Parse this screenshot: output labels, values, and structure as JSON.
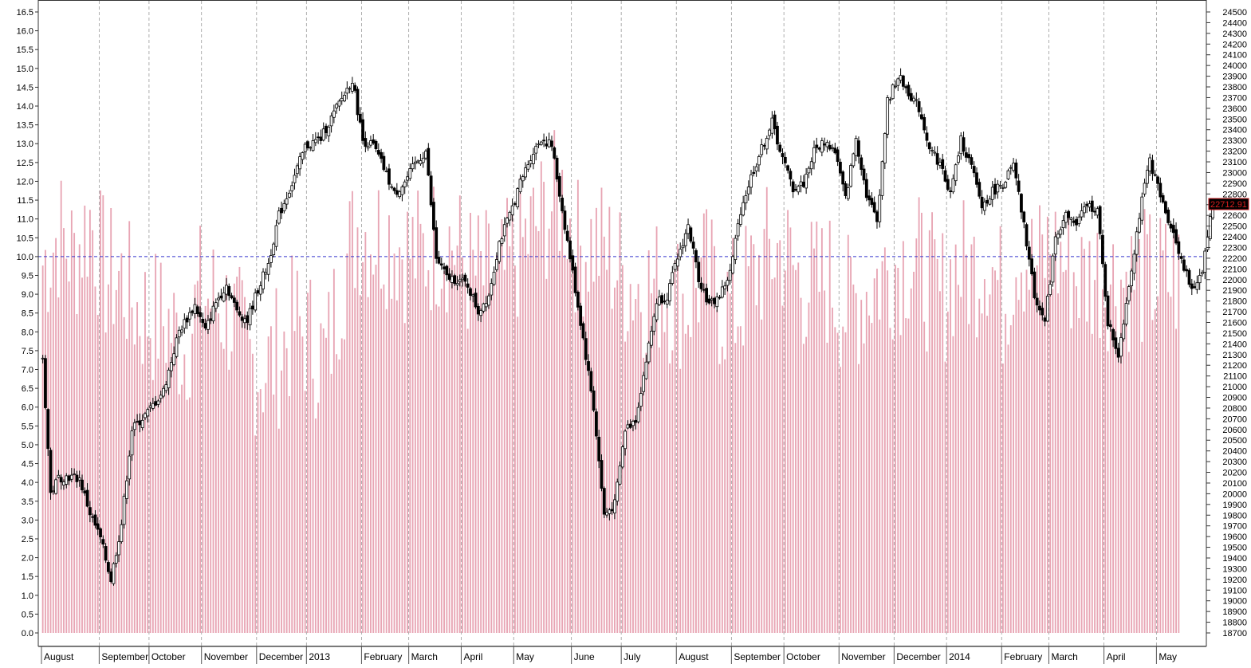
{
  "chart_data": {
    "type": "bar",
    "subtype": "volume bars with candlestick overlay",
    "left_axis": {
      "ylim": [
        0,
        16.5
      ],
      "ticks": [
        "0.0",
        "0.5",
        "1.0",
        "1.5",
        "2.0",
        "2.5",
        "3.0",
        "3.5",
        "4.0",
        "4.5",
        "5.0",
        "5.5",
        "6.0",
        "6.5",
        "7.0",
        "7.5",
        "8.0",
        "8.5",
        "9.0",
        "9.5",
        "10.0",
        "10.5",
        "11.0",
        "11.5",
        "12.0",
        "12.5",
        "13.0",
        "13.5",
        "14.0",
        "14.5",
        "15.0",
        "15.5",
        "16.0",
        "16.5"
      ]
    },
    "right_axis": {
      "ylim": [
        18700,
        24500
      ],
      "ticks": [
        "18700",
        "18800",
        "18900",
        "19000",
        "19100",
        "19200",
        "19300",
        "19400",
        "19500",
        "19600",
        "19700",
        "19800",
        "19900",
        "20000",
        "20100",
        "20200",
        "20300",
        "20400",
        "20500",
        "20600",
        "20700",
        "20800",
        "20900",
        "21000",
        "21100",
        "21200",
        "21300",
        "21400",
        "21500",
        "21600",
        "21700",
        "21800",
        "21900",
        "22000",
        "22100",
        "22200",
        "22300",
        "22400",
        "22500",
        "22600",
        "22700",
        "22800",
        "22900",
        "23000",
        "23100",
        "23200",
        "23300",
        "23400",
        "23500",
        "23600",
        "23700",
        "23800",
        "23900",
        "24000",
        "24100",
        "24200",
        "24300",
        "24400",
        "24500"
      ]
    },
    "last_price_label": "22712.91",
    "reference_line": {
      "axis": "left",
      "value": 10.0,
      "style": "dashed",
      "color": "#3333cc"
    },
    "months": [
      "August",
      "September",
      "October",
      "November",
      "December",
      "2013",
      "February",
      "March",
      "April",
      "May",
      "June",
      "July",
      "August",
      "September",
      "October",
      "November",
      "December",
      "2014",
      "February",
      "March",
      "April",
      "May"
    ],
    "grid": "vertical dashed at month starts",
    "volume_color": "#e8a5b4",
    "candle_color": "#000000",
    "bars_per_month": [
      22,
      19,
      20,
      21,
      19,
      21,
      18,
      20,
      20,
      22,
      19,
      21,
      21,
      20,
      21,
      21,
      20,
      21,
      18,
      21,
      20,
      9
    ],
    "volume_anchors": [
      [
        0,
        9.8
      ],
      [
        6,
        10.6
      ],
      [
        12,
        10.0
      ],
      [
        18,
        11.0
      ],
      [
        24,
        9.5
      ],
      [
        30,
        9.4
      ],
      [
        36,
        8.6
      ],
      [
        42,
        8.4
      ],
      [
        48,
        8.2
      ],
      [
        54,
        7.6
      ],
      [
        60,
        9.0
      ],
      [
        66,
        8.8
      ],
      [
        72,
        8.4
      ],
      [
        78,
        7.3
      ],
      [
        84,
        7.0
      ],
      [
        90,
        7.4
      ],
      [
        96,
        8.2
      ],
      [
        102,
        7.8
      ],
      [
        108,
        7.2
      ],
      [
        114,
        9.5
      ],
      [
        120,
        10.8
      ],
      [
        126,
        10.6
      ],
      [
        132,
        10.6
      ],
      [
        138,
        10.2
      ],
      [
        144,
        10.0
      ],
      [
        150,
        10.4
      ],
      [
        156,
        10.4
      ],
      [
        162,
        9.6
      ],
      [
        168,
        9.4
      ],
      [
        174,
        9.2
      ],
      [
        180,
        10.0
      ],
      [
        186,
        10.6
      ],
      [
        192,
        11.2
      ],
      [
        198,
        11.6
      ],
      [
        204,
        10.2
      ],
      [
        210,
        10.4
      ],
      [
        216,
        10.0
      ],
      [
        222,
        9.4
      ],
      [
        228,
        9.2
      ],
      [
        234,
        9.2
      ],
      [
        240,
        9.0
      ],
      [
        246,
        8.8
      ],
      [
        252,
        9.6
      ],
      [
        258,
        8.8
      ],
      [
        264,
        8.6
      ],
      [
        270,
        9.4
      ],
      [
        276,
        10.0
      ],
      [
        282,
        10.2
      ],
      [
        288,
        9.4
      ],
      [
        294,
        9.2
      ],
      [
        300,
        9.4
      ],
      [
        306,
        8.6
      ],
      [
        312,
        9.0
      ],
      [
        318,
        9.4
      ],
      [
        324,
        9.8
      ],
      [
        330,
        10.0
      ],
      [
        336,
        9.6
      ],
      [
        342,
        8.8
      ],
      [
        348,
        9.8
      ],
      [
        354,
        9.6
      ],
      [
        360,
        10.2
      ],
      [
        366,
        8.8
      ],
      [
        372,
        10.4
      ],
      [
        378,
        9.6
      ],
      [
        384,
        10.2
      ],
      [
        390,
        9.8
      ],
      [
        396,
        9.4
      ],
      [
        402,
        9.6
      ],
      [
        409,
        9.4
      ]
    ],
    "candles": [
      [
        0,
        21260
      ],
      [
        3,
        20000
      ],
      [
        6,
        20150
      ],
      [
        10,
        20160
      ],
      [
        14,
        20140
      ],
      [
        18,
        19820
      ],
      [
        22,
        19580
      ],
      [
        26,
        19200
      ],
      [
        30,
        19720
      ],
      [
        34,
        20600
      ],
      [
        40,
        20760
      ],
      [
        46,
        20960
      ],
      [
        52,
        21520
      ],
      [
        58,
        21760
      ],
      [
        62,
        21520
      ],
      [
        66,
        21790
      ],
      [
        70,
        21950
      ],
      [
        74,
        21700
      ],
      [
        78,
        21620
      ],
      [
        82,
        21910
      ],
      [
        86,
        22150
      ],
      [
        90,
        22600
      ],
      [
        95,
        22900
      ],
      [
        100,
        23240
      ],
      [
        106,
        23320
      ],
      [
        112,
        23600
      ],
      [
        118,
        23870
      ],
      [
        122,
        23300
      ],
      [
        126,
        23250
      ],
      [
        130,
        23040
      ],
      [
        134,
        22800
      ],
      [
        138,
        22910
      ],
      [
        142,
        23080
      ],
      [
        146,
        23200
      ],
      [
        150,
        22200
      ],
      [
        154,
        22020
      ],
      [
        158,
        22000
      ],
      [
        162,
        21950
      ],
      [
        166,
        21700
      ],
      [
        170,
        21860
      ],
      [
        174,
        22350
      ],
      [
        178,
        22600
      ],
      [
        182,
        22900
      ],
      [
        186,
        23150
      ],
      [
        190,
        23320
      ],
      [
        194,
        23250
      ],
      [
        198,
        22650
      ],
      [
        202,
        22060
      ],
      [
        206,
        21450
      ],
      [
        210,
        20800
      ],
      [
        214,
        19800
      ],
      [
        218,
        19900
      ],
      [
        222,
        20600
      ],
      [
        226,
        20700
      ],
      [
        230,
        21240
      ],
      [
        234,
        21800
      ],
      [
        238,
        21850
      ],
      [
        242,
        22200
      ],
      [
        246,
        22500
      ],
      [
        250,
        22020
      ],
      [
        254,
        21760
      ],
      [
        258,
        21850
      ],
      [
        262,
        22060
      ],
      [
        266,
        22650
      ],
      [
        270,
        22960
      ],
      [
        274,
        23220
      ],
      [
        278,
        23470
      ],
      [
        282,
        23130
      ],
      [
        286,
        22850
      ],
      [
        290,
        22900
      ],
      [
        294,
        23200
      ],
      [
        298,
        23290
      ],
      [
        302,
        23200
      ],
      [
        306,
        22750
      ],
      [
        310,
        23320
      ],
      [
        314,
        22800
      ],
      [
        318,
        22550
      ],
      [
        322,
        23660
      ],
      [
        326,
        23900
      ],
      [
        330,
        23750
      ],
      [
        334,
        23600
      ],
      [
        338,
        23240
      ],
      [
        342,
        23080
      ],
      [
        346,
        22800
      ],
      [
        350,
        23300
      ],
      [
        354,
        23050
      ],
      [
        358,
        22680
      ],
      [
        362,
        22820
      ],
      [
        366,
        22900
      ],
      [
        370,
        23060
      ],
      [
        374,
        22500
      ],
      [
        378,
        21860
      ],
      [
        382,
        21600
      ],
      [
        386,
        22400
      ],
      [
        390,
        22600
      ],
      [
        394,
        22510
      ],
      [
        398,
        22700
      ],
      [
        402,
        22650
      ],
      [
        406,
        21600
      ],
      [
        410,
        21300
      ],
      [
        414,
        21950
      ],
      [
        418,
        22600
      ],
      [
        422,
        23120
      ],
      [
        426,
        22770
      ],
      [
        430,
        22500
      ],
      [
        434,
        22200
      ],
      [
        438,
        21880
      ],
      [
        442,
        22100
      ],
      [
        446,
        22713
      ]
    ]
  }
}
